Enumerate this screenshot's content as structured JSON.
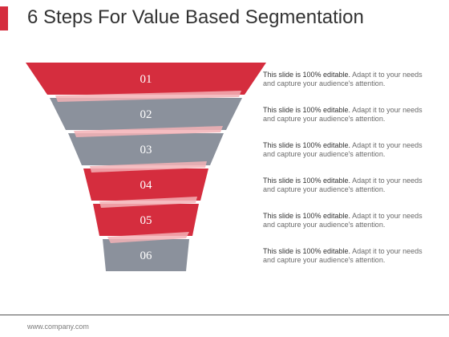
{
  "title": "6 Steps For Value Based Segmentation",
  "colors": {
    "red": "#d52d3e",
    "gray": "#8b919c",
    "stripe": "#f3b1b6"
  },
  "steps": [
    {
      "number": "01",
      "color": "red",
      "lead": "This slide is 100% editable.",
      "text": " Adapt it to your needs and capture your audience's attention."
    },
    {
      "number": "02",
      "color": "gray",
      "lead": "This slide is 100% editable.",
      "text": " Adapt it to your needs and capture your audience's attention."
    },
    {
      "number": "03",
      "color": "gray",
      "lead": "This slide is 100% editable.",
      "text": " Adapt it to your needs and capture your audience's attention."
    },
    {
      "number": "04",
      "color": "red",
      "lead": "This slide is 100% editable.",
      "text": " Adapt it to your needs and capture your audience's attention."
    },
    {
      "number": "05",
      "color": "red",
      "lead": "This slide is 100% editable.",
      "text": " Adapt it to your needs and capture your audience's attention."
    },
    {
      "number": "06",
      "color": "gray",
      "lead": "This slide is 100% editable.",
      "text": " Adapt it to your needs and capture your audience's attention."
    }
  ],
  "footer": "www.company.com"
}
